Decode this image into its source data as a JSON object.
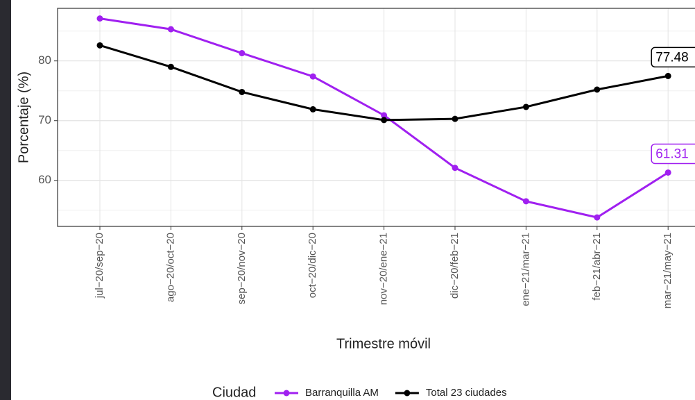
{
  "chart_data": {
    "type": "line",
    "y_label": "Porcentaje (%)",
    "x_label": "Trimestre móvil",
    "legend_title": "Ciudad",
    "legend_position": "bottom",
    "categories": [
      "jul−20/sep−20",
      "ago−20/oct−20",
      "sep−20/nov−20",
      "oct−20/dic−20",
      "nov−20/ene−21",
      "dic−20/feb−21",
      "ene−21/mar−21",
      "feb−21/abr−21",
      "mar−21/may−21"
    ],
    "series": [
      {
        "name": "Barranquilla AM",
        "color": "#a020f0",
        "values": [
          87.1,
          85.3,
          81.3,
          77.4,
          70.9,
          62.1,
          56.5,
          53.8,
          61.31
        ],
        "value_labels": [
          null,
          null,
          null,
          null,
          null,
          null,
          null,
          null,
          "61.31"
        ]
      },
      {
        "name": "Total 23 ciudades",
        "color": "#000000",
        "values": [
          82.6,
          79.0,
          74.8,
          71.9,
          70.1,
          70.3,
          72.3,
          75.2,
          77.48
        ],
        "value_labels": [
          null,
          null,
          null,
          null,
          null,
          null,
          null,
          null,
          "77.48"
        ]
      }
    ],
    "ylim": [
      52.3,
      88.8
    ],
    "yticks": [
      60,
      70,
      80
    ],
    "y_minor_ticks": [
      55,
      65,
      75,
      85
    ],
    "grid": true
  }
}
